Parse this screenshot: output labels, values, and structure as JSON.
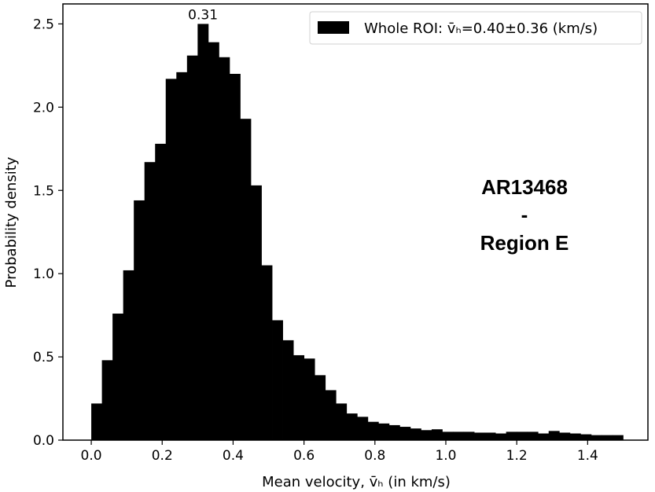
{
  "chart_data": {
    "type": "bar",
    "xlabel": "Mean velocity, v̄ₕ (in km/s)",
    "ylabel": "Probability density",
    "xlim": [
      -0.08,
      1.57
    ],
    "ylim": [
      0,
      2.62
    ],
    "xticks": [
      "0.0",
      "0.2",
      "0.4",
      "0.6",
      "0.8",
      "1.0",
      "1.2",
      "1.4"
    ],
    "yticks": [
      "0.0",
      "0.5",
      "1.0",
      "1.5",
      "2.0",
      "2.5"
    ],
    "bin_start": 0.0,
    "bin_width": 0.03,
    "values": [
      0.22,
      0.48,
      0.76,
      1.02,
      1.44,
      1.67,
      1.78,
      2.17,
      2.21,
      2.31,
      2.5,
      2.39,
      2.3,
      2.2,
      1.93,
      1.53,
      1.05,
      0.72,
      0.6,
      0.51,
      0.49,
      0.39,
      0.3,
      0.22,
      0.16,
      0.14,
      0.11,
      0.1,
      0.09,
      0.08,
      0.07,
      0.06,
      0.065,
      0.05,
      0.05,
      0.05,
      0.045,
      0.045,
      0.04,
      0.05,
      0.05,
      0.05,
      0.04,
      0.055,
      0.045,
      0.04,
      0.035,
      0.03,
      0.03,
      0.03
    ],
    "bar_color": "#000000",
    "peak_label": "0.31",
    "legend": {
      "label": "Whole ROI: v̄ₕ=0.40±0.36 (km/s)",
      "position": "upper right"
    },
    "annotation": {
      "line1": "AR13468",
      "line2": "-",
      "line3": "Region E"
    }
  }
}
